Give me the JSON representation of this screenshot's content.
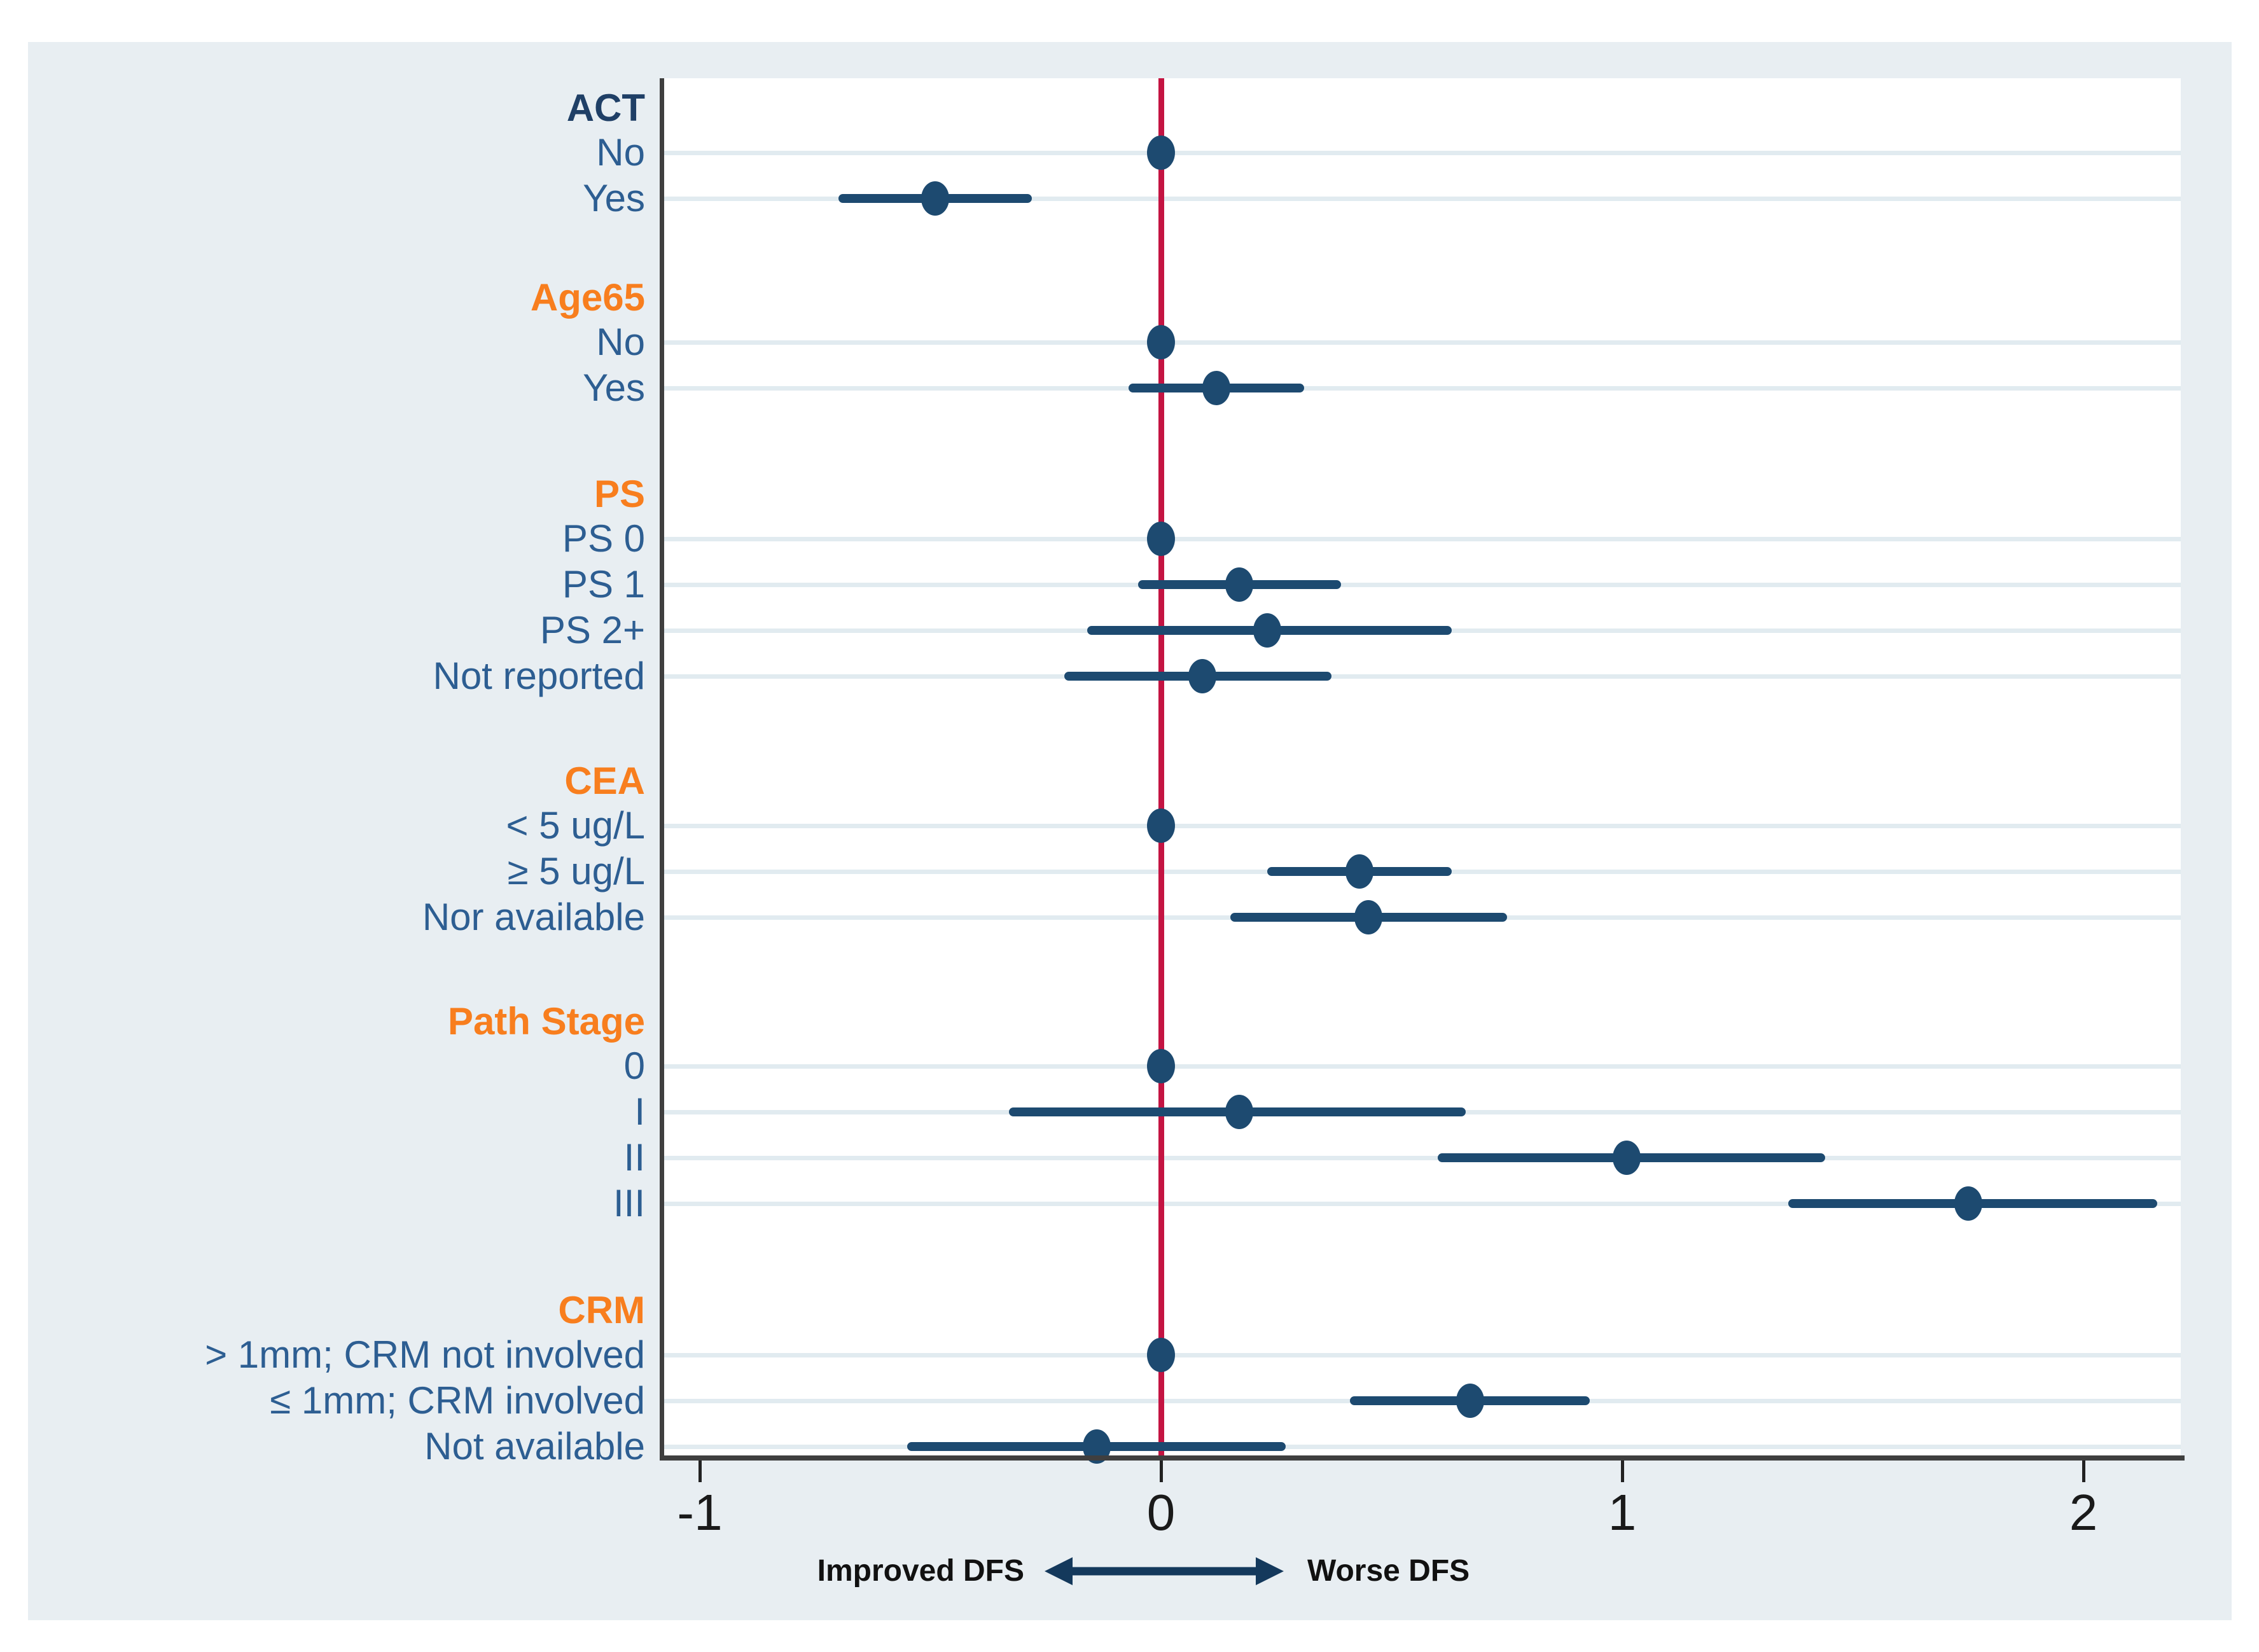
{
  "chart_data": {
    "type": "forest",
    "title": "",
    "x_axis": {
      "ticks": [
        -1,
        0,
        1,
        2
      ],
      "range": [
        -1.08,
        2.21
      ],
      "reference_line": 0,
      "grid": "horizontal-row-lines"
    },
    "direction_labels": {
      "left": "Improved DFS",
      "right": "Worse DFS"
    },
    "groups": [
      {
        "name": "ACT",
        "header_style": "dark",
        "items": [
          {
            "label": "No",
            "estimate": 0,
            "ci": null,
            "reference": true
          },
          {
            "label": "Yes",
            "estimate": -0.49,
            "ci": [
              -0.7,
              -0.28
            ]
          }
        ]
      },
      {
        "name": "Age65",
        "header_style": "orange",
        "items": [
          {
            "label": "No",
            "estimate": 0,
            "ci": null,
            "reference": true
          },
          {
            "label": "Yes",
            "estimate": 0.12,
            "ci": [
              -0.07,
              0.31
            ]
          }
        ]
      },
      {
        "name": "PS",
        "header_style": "orange",
        "items": [
          {
            "label": "PS 0",
            "estimate": 0,
            "ci": null,
            "reference": true
          },
          {
            "label": "PS 1",
            "estimate": 0.17,
            "ci": [
              -0.05,
              0.39
            ]
          },
          {
            "label": "PS 2+",
            "estimate": 0.23,
            "ci": [
              -0.16,
              0.63
            ]
          },
          {
            "label": "Not reported",
            "estimate": 0.09,
            "ci": [
              -0.21,
              0.37
            ]
          }
        ]
      },
      {
        "name": "CEA",
        "header_style": "orange",
        "items": [
          {
            "label": "< 5 ug/L",
            "estimate": 0,
            "ci": null,
            "reference": true
          },
          {
            "label": "≥ 5 ug/L",
            "estimate": 0.43,
            "ci": [
              0.23,
              0.63
            ]
          },
          {
            "label": "Nor available",
            "estimate": 0.45,
            "ci": [
              0.15,
              0.75
            ]
          }
        ]
      },
      {
        "name": "Path Stage",
        "header_style": "orange",
        "items": [
          {
            "label": "0",
            "estimate": 0,
            "ci": null,
            "reference": true
          },
          {
            "label": "I",
            "estimate": 0.17,
            "ci": [
              -0.33,
              0.66
            ]
          },
          {
            "label": "II",
            "estimate": 1.01,
            "ci": [
              0.6,
              1.44
            ]
          },
          {
            "label": "III",
            "estimate": 1.75,
            "ci": [
              1.36,
              2.16
            ]
          }
        ]
      },
      {
        "name": "CRM",
        "header_style": "orange",
        "items": [
          {
            "label": "> 1mm; CRM not involved",
            "estimate": 0,
            "ci": null,
            "reference": true
          },
          {
            "label": "≤ 1mm; CRM  involved",
            "estimate": 0.67,
            "ci": [
              0.41,
              0.93
            ]
          },
          {
            "label": "Not available",
            "estimate": -0.14,
            "ci": [
              -0.55,
              0.27
            ]
          }
        ]
      }
    ],
    "colors": {
      "panel_background": "#e8eef2",
      "plot_background": "#ffffff",
      "gridline": "#e1ebf0",
      "reference_line": "#c41442",
      "marker": "#1d4a70",
      "item_label": "#2d5e92",
      "group_header_orange": "#f87e1e",
      "group_header_dark": "#1f3f66",
      "axis": "#3f3f3f",
      "arrow": "#14395c"
    }
  }
}
